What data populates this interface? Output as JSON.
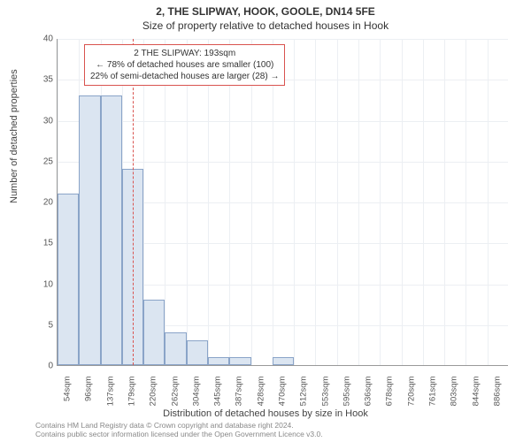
{
  "titles": {
    "line1": "2, THE SLIPWAY, HOOK, GOOLE, DN14 5FE",
    "line2": "Size of property relative to detached houses in Hook"
  },
  "chart": {
    "type": "histogram",
    "ylabel": "Number of detached properties",
    "xlabel": "Distribution of detached houses by size in Hook",
    "ylim": [
      0,
      40
    ],
    "ytick_step": 5,
    "background_color": "#ffffff",
    "grid_color": "#eceff3",
    "axis_color": "#999999",
    "label_fontsize": 11,
    "tick_fontsize": 10,
    "bar_fill": "#dbe5f1",
    "bar_stroke": "#8aa4c8",
    "bar_width_ratio": 1.0,
    "x_categories": [
      "54sqm",
      "96sqm",
      "137sqm",
      "179sqm",
      "220sqm",
      "262sqm",
      "304sqm",
      "345sqm",
      "387sqm",
      "428sqm",
      "470sqm",
      "512sqm",
      "553sqm",
      "595sqm",
      "636sqm",
      "678sqm",
      "720sqm",
      "761sqm",
      "803sqm",
      "844sqm",
      "886sqm"
    ],
    "values": [
      21,
      33,
      33,
      24,
      8,
      4,
      3,
      1,
      1,
      0,
      1,
      0,
      0,
      0,
      0,
      0,
      0,
      0,
      0,
      0,
      0
    ],
    "marker": {
      "x_value_sqm": 193,
      "color": "#d9534f",
      "dash": true,
      "callout_lines": [
        "2 THE SLIPWAY: 193sqm",
        "← 78% of detached houses are smaller (100)",
        "22% of semi-detached houses are larger (28) →"
      ]
    }
  },
  "attribution": {
    "line1": "Contains HM Land Registry data © Crown copyright and database right 2024.",
    "line2": "Contains public sector information licensed under the Open Government Licence v3.0."
  }
}
